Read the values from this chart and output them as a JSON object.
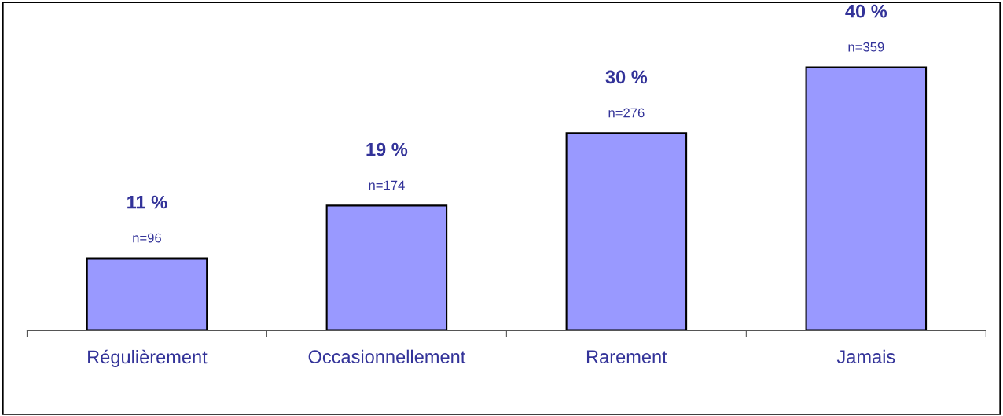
{
  "chart_data": {
    "type": "bar",
    "categories": [
      "Régulièrement",
      "Occasionnellement",
      "Rarement",
      "Jamais"
    ],
    "values": [
      11,
      19,
      30,
      40
    ],
    "color": "#9999ff",
    "value_labels": [
      "11 %",
      "19 %",
      "30 %",
      "40 %"
    ],
    "annotations": [
      {
        "text": "n=96",
        "x": "Régulièrement",
        "y": 11
      },
      {
        "text": "n=174",
        "x": "Occasionnellement",
        "y": 19
      },
      {
        "text": "n=276",
        "x": "Rarement",
        "y": 30
      },
      {
        "text": "n=359",
        "x": "Jamais",
        "y": 40
      }
    ],
    "grid": false,
    "legend": false
  }
}
